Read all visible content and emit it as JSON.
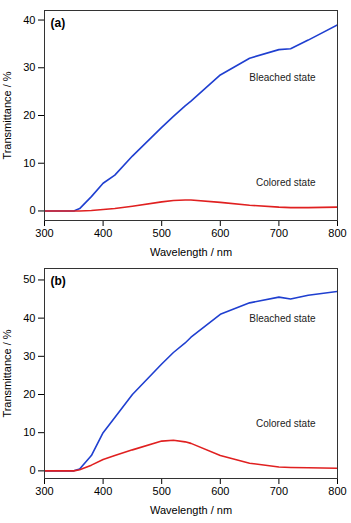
{
  "chart_data": [
    {
      "type": "line",
      "title": "(a)",
      "x_label": "Wavelength / nm",
      "y_label": "Transmittance / %",
      "x": [
        300,
        350,
        360,
        380,
        400,
        420,
        450,
        500,
        520,
        540,
        550,
        600,
        650,
        700,
        720,
        750,
        800
      ],
      "series": [
        {
          "name": "Bleached state",
          "color": "#1f3fd0",
          "values": [
            0,
            0,
            0.5,
            3,
            5.8,
            7.5,
            11.5,
            17.5,
            19.8,
            22,
            23,
            28.5,
            32,
            33.8,
            34,
            35.8,
            39
          ]
        },
        {
          "name": "Colored state",
          "color": "#e02020",
          "values": [
            0,
            0,
            0,
            0.1,
            0.3,
            0.5,
            1,
            1.9,
            2.2,
            2.3,
            2.3,
            1.8,
            1.2,
            0.8,
            0.7,
            0.7,
            0.8
          ]
        }
      ],
      "xlim": [
        300,
        800
      ],
      "xticks": [
        300,
        400,
        500,
        600,
        700,
        800
      ],
      "ylim": [
        -2,
        42
      ],
      "yticks": [
        0,
        10,
        20,
        30,
        40
      ],
      "grid": false
    },
    {
      "type": "line",
      "title": "(b)",
      "x_label": "Wavelength / nm",
      "y_label": "Transmittance / %",
      "x": [
        300,
        350,
        360,
        380,
        400,
        420,
        450,
        500,
        520,
        540,
        550,
        600,
        650,
        700,
        720,
        750,
        800
      ],
      "series": [
        {
          "name": "Bleached state",
          "color": "#1f3fd0",
          "values": [
            0,
            0,
            0.5,
            4,
            10,
            14,
            20,
            28,
            31,
            33.5,
            35,
            41,
            44,
            45.5,
            45,
            46,
            47
          ]
        },
        {
          "name": "Colored state",
          "color": "#e02020",
          "values": [
            0,
            0,
            0.3,
            1.5,
            3,
            4,
            5.5,
            7.8,
            8,
            7.6,
            7.2,
            4,
            2,
            1,
            0.9,
            0.8,
            0.7
          ]
        }
      ],
      "xlim": [
        300,
        800
      ],
      "xticks": [
        300,
        400,
        500,
        600,
        700,
        800
      ],
      "ylim": [
        -2,
        53
      ],
      "yticks": [
        0,
        10,
        20,
        30,
        40,
        50
      ],
      "grid": false
    }
  ]
}
